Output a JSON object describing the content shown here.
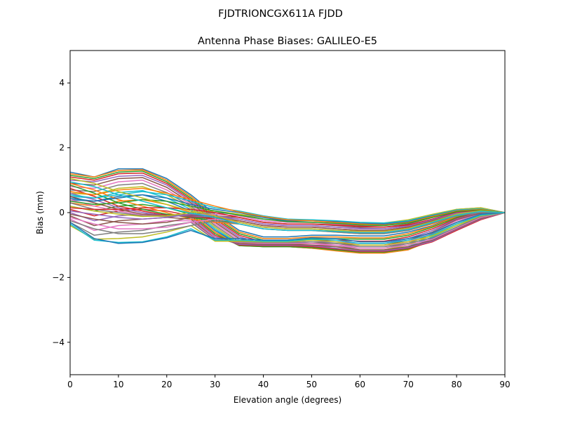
{
  "figure": {
    "suptitle": "FJDTRIONCGX611A FJDD"
  },
  "chart_data": {
    "type": "line",
    "title": "Antenna Phase Biases: GALILEO-E5",
    "xlabel": "Elevation angle (degrees)",
    "ylabel": "Bias (mm)",
    "xlim": [
      0,
      90
    ],
    "ylim": [
      -5,
      5
    ],
    "xticks": [
      0,
      10,
      20,
      30,
      40,
      50,
      60,
      70,
      80,
      90
    ],
    "xtick_labels": [
      "0",
      "10",
      "20",
      "30",
      "40",
      "50",
      "60",
      "70",
      "80",
      "90"
    ],
    "yticks": [
      -4,
      -2,
      0,
      2,
      4
    ],
    "ytick_labels": [
      "−4",
      "−2",
      "0",
      "2",
      "4"
    ],
    "grid": false,
    "legend": "none",
    "x": [
      0,
      5,
      10,
      15,
      20,
      25,
      30,
      35,
      40,
      45,
      50,
      55,
      60,
      65,
      70,
      75,
      80,
      85,
      90
    ],
    "palette": [
      "#1f77b4",
      "#ff7f0e",
      "#2ca02c",
      "#d62728",
      "#9467bd",
      "#8c564b",
      "#e377c2",
      "#7f7f7f",
      "#bcbd22",
      "#17becf"
    ],
    "series": [
      {
        "values": [
          1.25,
          1.1,
          1.35,
          1.35,
          1.05,
          0.55,
          -0.05,
          -0.55,
          -0.75,
          -0.75,
          -0.7,
          -0.7,
          -0.72,
          -0.72,
          -0.6,
          -0.4,
          -0.1,
          0.05,
          0.0
        ]
      },
      {
        "values": [
          1.2,
          1.1,
          1.3,
          1.32,
          1.0,
          0.5,
          -0.1,
          -0.6,
          -0.8,
          -0.8,
          -0.75,
          -0.75,
          -0.78,
          -0.78,
          -0.65,
          -0.42,
          -0.12,
          0.04,
          0.0
        ]
      },
      {
        "values": [
          1.15,
          1.05,
          1.25,
          1.28,
          0.95,
          0.45,
          -0.15,
          -0.65,
          -0.85,
          -0.85,
          -0.8,
          -0.8,
          -0.82,
          -0.82,
          -0.7,
          -0.45,
          -0.15,
          0.03,
          0.0
        ]
      },
      {
        "values": [
          1.1,
          1.0,
          1.2,
          1.22,
          0.9,
          0.4,
          -0.2,
          -0.7,
          -0.9,
          -0.9,
          -0.85,
          -0.85,
          -0.88,
          -0.88,
          -0.75,
          -0.5,
          -0.18,
          0.02,
          0.0
        ]
      },
      {
        "values": [
          1.0,
          0.95,
          1.12,
          1.15,
          0.85,
          0.35,
          -0.25,
          -0.75,
          -0.95,
          -0.95,
          -0.9,
          -0.9,
          -0.95,
          -0.95,
          -0.8,
          -0.55,
          -0.2,
          0.0,
          0.0
        ]
      },
      {
        "values": [
          0.9,
          0.85,
          1.05,
          1.08,
          0.78,
          0.3,
          -0.3,
          -0.8,
          -0.98,
          -0.98,
          -0.95,
          -0.95,
          -1.0,
          -1.0,
          -0.85,
          -0.6,
          -0.22,
          -0.02,
          0.0
        ]
      },
      {
        "values": [
          0.8,
          0.75,
          0.95,
          1.0,
          0.7,
          0.25,
          -0.35,
          -0.85,
          -1.0,
          -1.0,
          -1.0,
          -1.0,
          -1.05,
          -1.05,
          -0.9,
          -0.62,
          -0.25,
          -0.05,
          0.0
        ]
      },
      {
        "values": [
          0.7,
          0.65,
          0.85,
          0.9,
          0.62,
          0.2,
          -0.4,
          -0.9,
          -1.02,
          -1.02,
          -1.02,
          -1.05,
          -1.1,
          -1.1,
          -0.95,
          -0.65,
          -0.3,
          -0.08,
          0.0
        ]
      },
      {
        "values": [
          0.6,
          0.55,
          0.75,
          0.8,
          0.55,
          0.15,
          -0.45,
          -0.95,
          -1.05,
          -1.05,
          -1.05,
          -1.1,
          -1.15,
          -1.15,
          -1.0,
          -0.7,
          -0.35,
          -0.1,
          0.0
        ]
      },
      {
        "values": [
          0.5,
          0.45,
          0.62,
          0.68,
          0.45,
          0.1,
          -0.5,
          -0.98,
          -1.05,
          -1.05,
          -1.08,
          -1.12,
          -1.2,
          -1.2,
          -1.05,
          -0.75,
          -0.4,
          -0.12,
          0.0
        ]
      },
      {
        "values": [
          0.4,
          0.35,
          0.5,
          0.55,
          0.35,
          0.05,
          -0.55,
          -1.0,
          -1.05,
          -1.05,
          -1.1,
          -1.15,
          -1.22,
          -1.22,
          -1.1,
          -0.8,
          -0.45,
          -0.15,
          0.0
        ]
      },
      {
        "values": [
          0.3,
          0.2,
          0.35,
          0.4,
          0.25,
          0.0,
          -0.6,
          -1.02,
          -1.05,
          -1.05,
          -1.1,
          -1.18,
          -1.25,
          -1.25,
          -1.15,
          -0.85,
          -0.5,
          -0.18,
          0.0
        ]
      },
      {
        "values": [
          0.2,
          0.05,
          0.2,
          0.25,
          0.15,
          -0.05,
          -0.65,
          -1.02,
          -1.05,
          -1.05,
          -1.08,
          -1.15,
          -1.22,
          -1.22,
          -1.12,
          -0.88,
          -0.52,
          -0.2,
          0.0
        ]
      },
      {
        "values": [
          0.1,
          -0.1,
          0.05,
          0.1,
          0.05,
          -0.1,
          -0.7,
          -1.0,
          -1.02,
          -1.02,
          -1.05,
          -1.12,
          -1.2,
          -1.2,
          -1.1,
          -0.9,
          -0.55,
          -0.22,
          0.0
        ]
      },
      {
        "values": [
          0.0,
          -0.25,
          -0.1,
          -0.05,
          -0.05,
          -0.15,
          -0.75,
          -0.98,
          -1.0,
          -1.0,
          -1.02,
          -1.1,
          -1.18,
          -1.18,
          -1.08,
          -0.88,
          -0.52,
          -0.2,
          0.0
        ]
      },
      {
        "values": [
          -0.1,
          -0.4,
          -0.25,
          -0.2,
          -0.15,
          -0.2,
          -0.8,
          -0.95,
          -0.98,
          -0.98,
          -1.0,
          -1.05,
          -1.15,
          -1.15,
          -1.05,
          -0.85,
          -0.5,
          -0.18,
          0.0
        ]
      },
      {
        "values": [
          -0.2,
          -0.55,
          -0.4,
          -0.35,
          -0.25,
          -0.25,
          -0.82,
          -0.92,
          -0.95,
          -0.95,
          -0.95,
          -1.0,
          -1.1,
          -1.1,
          -1.0,
          -0.82,
          -0.48,
          -0.15,
          0.0
        ]
      },
      {
        "values": [
          -0.3,
          -0.7,
          -0.6,
          -0.55,
          -0.4,
          -0.3,
          -0.85,
          -0.9,
          -0.92,
          -0.92,
          -0.9,
          -0.95,
          -1.05,
          -1.05,
          -0.95,
          -0.78,
          -0.45,
          -0.12,
          0.0
        ]
      },
      {
        "values": [
          -0.4,
          -0.82,
          -0.8,
          -0.75,
          -0.6,
          -0.4,
          -0.88,
          -0.88,
          -0.9,
          -0.9,
          -0.85,
          -0.9,
          -1.0,
          -1.0,
          -0.9,
          -0.72,
          -0.4,
          -0.1,
          0.0
        ]
      },
      {
        "values": [
          -0.35,
          -0.85,
          -0.92,
          -0.9,
          -0.75,
          -0.5,
          -0.85,
          -0.85,
          -0.88,
          -0.88,
          -0.82,
          -0.85,
          -0.95,
          -0.95,
          -0.85,
          -0.68,
          -0.35,
          -0.08,
          0.0
        ]
      },
      {
        "values": [
          -0.3,
          -0.8,
          -0.95,
          -0.92,
          -0.78,
          -0.55,
          -0.8,
          -0.8,
          -0.85,
          -0.85,
          -0.78,
          -0.8,
          -0.9,
          -0.9,
          -0.8,
          -0.62,
          -0.3,
          -0.05,
          0.0
        ]
      },
      {
        "values": [
          0.9,
          0.7,
          0.4,
          0.2,
          0.0,
          -0.2,
          -0.3,
          -0.35,
          -0.5,
          -0.55,
          -0.55,
          -0.6,
          -0.65,
          -0.65,
          -0.55,
          -0.35,
          -0.1,
          0.05,
          0.0
        ]
      },
      {
        "values": [
          0.85,
          0.6,
          0.3,
          0.1,
          -0.05,
          -0.15,
          -0.25,
          -0.3,
          -0.45,
          -0.5,
          -0.5,
          -0.55,
          -0.6,
          -0.6,
          -0.5,
          -0.3,
          -0.05,
          0.08,
          0.0
        ]
      },
      {
        "values": [
          0.75,
          0.5,
          0.2,
          0.05,
          -0.08,
          -0.12,
          -0.2,
          -0.25,
          -0.4,
          -0.45,
          -0.45,
          -0.5,
          -0.55,
          -0.55,
          -0.45,
          -0.25,
          0.0,
          0.1,
          0.0
        ]
      },
      {
        "values": [
          0.6,
          0.4,
          0.15,
          0.0,
          -0.1,
          -0.1,
          -0.15,
          -0.2,
          -0.35,
          -0.4,
          -0.4,
          -0.45,
          -0.5,
          -0.5,
          -0.4,
          -0.2,
          0.03,
          0.12,
          0.0
        ]
      },
      {
        "values": [
          0.5,
          0.3,
          0.1,
          -0.05,
          -0.1,
          -0.08,
          -0.1,
          -0.15,
          -0.3,
          -0.35,
          -0.35,
          -0.4,
          -0.45,
          -0.45,
          -0.35,
          -0.15,
          0.06,
          0.13,
          0.0
        ]
      },
      {
        "values": [
          0.4,
          0.2,
          0.05,
          -0.08,
          -0.12,
          -0.05,
          -0.05,
          -0.1,
          -0.25,
          -0.3,
          -0.3,
          -0.35,
          -0.4,
          -0.4,
          -0.3,
          -0.1,
          0.08,
          0.14,
          0.0
        ]
      },
      {
        "values": [
          0.3,
          0.1,
          0.0,
          -0.1,
          -0.12,
          -0.05,
          0.0,
          -0.05,
          -0.2,
          -0.25,
          -0.25,
          -0.3,
          -0.35,
          -0.35,
          -0.25,
          -0.08,
          0.1,
          0.15,
          0.0
        ]
      },
      {
        "values": [
          0.2,
          0.05,
          -0.05,
          -0.12,
          -0.1,
          0.0,
          0.05,
          -0.05,
          -0.15,
          -0.22,
          -0.22,
          -0.28,
          -0.32,
          -0.32,
          -0.22,
          -0.05,
          0.1,
          0.15,
          0.0
        ]
      },
      {
        "values": [
          0.55,
          0.45,
          0.55,
          0.65,
          0.55,
          0.35,
          0.15,
          0.05,
          -0.1,
          -0.2,
          -0.22,
          -0.25,
          -0.3,
          -0.32,
          -0.25,
          -0.08,
          0.08,
          0.12,
          0.0
        ]
      },
      {
        "values": [
          0.45,
          0.35,
          0.45,
          0.55,
          0.45,
          0.25,
          0.1,
          0.0,
          -0.15,
          -0.25,
          -0.25,
          -0.28,
          -0.33,
          -0.35,
          -0.28,
          -0.1,
          0.06,
          0.1,
          0.0
        ]
      },
      {
        "values": [
          0.65,
          0.55,
          0.7,
          0.75,
          0.6,
          0.4,
          0.2,
          0.02,
          -0.12,
          -0.22,
          -0.25,
          -0.3,
          -0.35,
          -0.38,
          -0.3,
          -0.12,
          0.05,
          0.1,
          0.0
        ]
      },
      {
        "values": [
          0.35,
          0.25,
          0.3,
          0.4,
          0.35,
          0.2,
          0.05,
          -0.08,
          -0.2,
          -0.28,
          -0.3,
          -0.33,
          -0.38,
          -0.4,
          -0.32,
          -0.15,
          0.03,
          0.08,
          0.0
        ]
      },
      {
        "values": [
          0.15,
          0.1,
          0.1,
          0.15,
          0.15,
          0.1,
          0.0,
          -0.15,
          -0.3,
          -0.35,
          -0.35,
          -0.38,
          -0.42,
          -0.45,
          -0.38,
          -0.2,
          0.0,
          0.06,
          0.0
        ]
      },
      {
        "values": [
          0.05,
          -0.05,
          -0.15,
          -0.2,
          -0.15,
          -0.05,
          -0.1,
          -0.2,
          -0.35,
          -0.4,
          -0.4,
          -0.45,
          -0.48,
          -0.5,
          -0.42,
          -0.22,
          -0.02,
          0.05,
          0.0
        ]
      },
      {
        "values": [
          -0.05,
          -0.2,
          -0.3,
          -0.35,
          -0.3,
          -0.15,
          -0.15,
          -0.25,
          -0.4,
          -0.45,
          -0.45,
          -0.5,
          -0.55,
          -0.55,
          -0.45,
          -0.25,
          -0.05,
          0.04,
          0.0
        ]
      },
      {
        "values": [
          -0.15,
          -0.35,
          -0.5,
          -0.5,
          -0.45,
          -0.3,
          -0.2,
          -0.3,
          -0.45,
          -0.5,
          -0.5,
          -0.55,
          -0.6,
          -0.6,
          -0.5,
          -0.3,
          -0.08,
          0.02,
          0.0
        ]
      },
      {
        "values": [
          -0.25,
          -0.5,
          -0.65,
          -0.65,
          -0.55,
          -0.4,
          -0.25,
          -0.35,
          -0.5,
          -0.55,
          -0.55,
          -0.6,
          -0.65,
          -0.65,
          -0.55,
          -0.32,
          -0.1,
          0.0,
          0.0
        ]
      },
      {
        "values": [
          1.05,
          0.9,
          0.65,
          0.45,
          0.25,
          0.05,
          -0.1,
          -0.3,
          -0.45,
          -0.5,
          -0.5,
          -0.55,
          -0.58,
          -0.58,
          -0.48,
          -0.28,
          -0.05,
          0.06,
          0.0
        ]
      },
      {
        "values": [
          0.95,
          0.8,
          0.55,
          0.35,
          0.15,
          -0.02,
          -0.15,
          -0.35,
          -0.5,
          -0.55,
          -0.55,
          -0.58,
          -0.62,
          -0.62,
          -0.52,
          -0.3,
          -0.08,
          0.04,
          0.0
        ]
      }
    ]
  }
}
